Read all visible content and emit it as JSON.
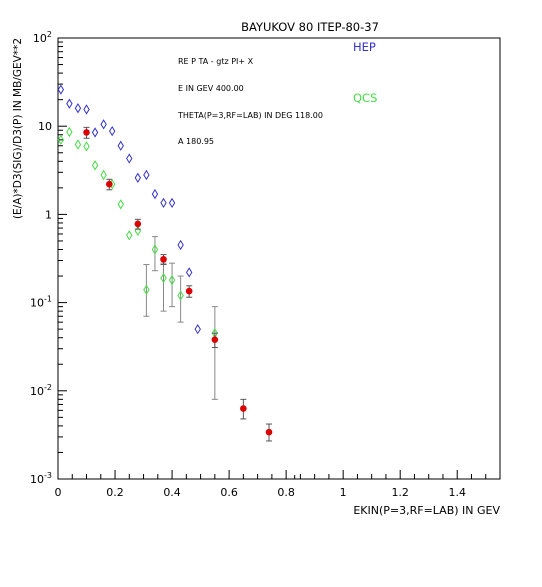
{
  "chart_data": {
    "type": "scatter",
    "title": "BAYUKOV 80   ITEP-80-37",
    "xlabel": "EKIN(P=3,RF=LAB) IN GEV",
    "ylabel": "(E/A)*D3(SIG)/D3(P) IN MB/GEV**2",
    "xlim": [
      0,
      1.55
    ],
    "ylim": [
      0.001,
      100
    ],
    "yscale": "log",
    "grid": false,
    "legend_position": "top-right",
    "x_ticks": [
      {
        "value": 0,
        "label": "0"
      },
      {
        "value": 0.2,
        "label": "0.2"
      },
      {
        "value": 0.4,
        "label": "0.4"
      },
      {
        "value": 0.6,
        "label": "0.6"
      },
      {
        "value": 0.8,
        "label": "0.8"
      },
      {
        "value": 1.0,
        "label": "1"
      },
      {
        "value": 1.2,
        "label": "1.2"
      },
      {
        "value": 1.4,
        "label": "1.4"
      }
    ],
    "y_ticks": [
      {
        "value": 100,
        "base": "10",
        "exp": "2"
      },
      {
        "value": 10,
        "base": "10",
        "exp": ""
      },
      {
        "value": 1,
        "base": "1",
        "exp": ""
      },
      {
        "value": 0.1,
        "base": "10",
        "exp": "-1"
      },
      {
        "value": 0.01,
        "base": "10",
        "exp": "-2"
      },
      {
        "value": 0.001,
        "base": "10",
        "exp": "-3"
      }
    ],
    "annotations": [
      "RE    P TA - gtz PI+ X",
      "E IN GEV   400.00",
      "THETA(P=3,RF=LAB) IN DEG   118.00",
      "A   180.95"
    ],
    "series": [
      {
        "name": "HEP",
        "color": "#3333cc",
        "marker": "open-diamond",
        "points": [
          {
            "x": 0.01,
            "y": 26
          },
          {
            "x": 0.04,
            "y": 18
          },
          {
            "x": 0.07,
            "y": 16
          },
          {
            "x": 0.1,
            "y": 15.5
          },
          {
            "x": 0.13,
            "y": 8.5
          },
          {
            "x": 0.16,
            "y": 10.5
          },
          {
            "x": 0.19,
            "y": 8.8
          },
          {
            "x": 0.22,
            "y": 6
          },
          {
            "x": 0.25,
            "y": 4.3
          },
          {
            "x": 0.28,
            "y": 2.6
          },
          {
            "x": 0.31,
            "y": 2.8
          },
          {
            "x": 0.34,
            "y": 1.7
          },
          {
            "x": 0.37,
            "y": 1.35
          },
          {
            "x": 0.4,
            "y": 1.35
          },
          {
            "x": 0.43,
            "y": 0.45
          },
          {
            "x": 0.46,
            "y": 0.22
          },
          {
            "x": 0.49,
            "y": 0.05
          }
        ]
      },
      {
        "name": "QCS",
        "color": "#44dd44",
        "marker": "open-diamond",
        "points": [
          {
            "x": 0.01,
            "y": 7
          },
          {
            "x": 0.04,
            "y": 8.6
          },
          {
            "x": 0.07,
            "y": 6.2
          },
          {
            "x": 0.1,
            "y": 5.9
          },
          {
            "x": 0.13,
            "y": 3.6
          },
          {
            "x": 0.16,
            "y": 2.8
          },
          {
            "x": 0.19,
            "y": 2.2
          },
          {
            "x": 0.22,
            "y": 1.3
          },
          {
            "x": 0.25,
            "y": 0.58
          },
          {
            "x": 0.28,
            "y": 0.65
          },
          {
            "x": 0.31,
            "y": 0.14,
            "err_low": 0.07,
            "err_high": 0.27
          },
          {
            "x": 0.34,
            "y": 0.4,
            "err_low": 0.23,
            "err_high": 0.56
          },
          {
            "x": 0.37,
            "y": 0.19,
            "err_low": 0.08,
            "err_high": 0.28
          },
          {
            "x": 0.4,
            "y": 0.18,
            "err_low": 0.09,
            "err_high": 0.28
          },
          {
            "x": 0.43,
            "y": 0.12,
            "err_low": 0.06,
            "err_high": 0.2
          },
          {
            "x": 0.55,
            "y": 0.045,
            "err_low": 0.008,
            "err_high": 0.09
          }
        ]
      },
      {
        "name": "",
        "color": "#dd0000",
        "marker": "filled-circle",
        "points": [
          {
            "x": 0.1,
            "y": 8.5,
            "err_low": 7.3,
            "err_high": 9.7
          },
          {
            "x": 0.18,
            "y": 2.2,
            "err_low": 1.9,
            "err_high": 2.5
          },
          {
            "x": 0.28,
            "y": 0.78,
            "err_low": 0.68,
            "err_high": 0.88
          },
          {
            "x": 0.37,
            "y": 0.31,
            "err_low": 0.27,
            "err_high": 0.35
          },
          {
            "x": 0.46,
            "y": 0.135,
            "err_low": 0.115,
            "err_high": 0.155
          },
          {
            "x": 0.55,
            "y": 0.038,
            "err_low": 0.031,
            "err_high": 0.045
          },
          {
            "x": 0.65,
            "y": 0.0063,
            "err_low": 0.0048,
            "err_high": 0.008
          },
          {
            "x": 0.74,
            "y": 0.0034,
            "err_low": 0.0027,
            "err_high": 0.0042
          }
        ]
      }
    ]
  }
}
